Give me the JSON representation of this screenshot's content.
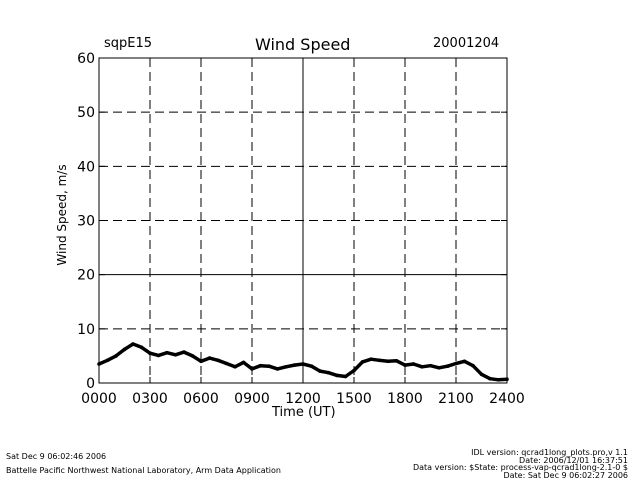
{
  "header": {
    "site": "sqpE15",
    "title": "Wind Speed",
    "date": "20001204"
  },
  "footer": {
    "left_line1": "Sat Dec  9 06:02:46 2006",
    "left_line2": "Battelle Pacific Northwest National Laboratory, Arm Data Application",
    "right_line1": "IDL version: qcrad1long_plots.pro,v 1.1",
    "right_line2": "Date: 2006/12/01 16:37:51",
    "right_line3": "Data version: $State: process-vap-qcrad1long-2.1-0 $",
    "right_line4": "Date: Sat Dec  9 06:02:27 2006"
  },
  "chart_data": {
    "type": "line",
    "title": "Wind Speed",
    "xlabel": "Time (UT)",
    "ylabel": "Wind Speed, m/s",
    "xlim": [
      0,
      2400
    ],
    "ylim": [
      0,
      60
    ],
    "x_ticks": [
      "0000",
      "0300",
      "0600",
      "0900",
      "1200",
      "1500",
      "1800",
      "2100",
      "2400"
    ],
    "y_ticks": [
      "0",
      "10",
      "20",
      "30",
      "40",
      "50",
      "60"
    ],
    "grid": true,
    "series": [
      {
        "color": "#000000",
        "x": [
          0,
          50,
          100,
          150,
          200,
          250,
          300,
          350,
          400,
          450,
          500,
          550,
          600,
          650,
          700,
          750,
          800,
          850,
          900,
          950,
          1000,
          1050,
          1100,
          1150,
          1200,
          1250,
          1300,
          1350,
          1400,
          1450,
          1500,
          1550,
          1600,
          1650,
          1700,
          1750,
          1800,
          1850,
          1900,
          1950,
          2000,
          2050,
          2100,
          2150,
          2200,
          2250,
          2300,
          2350,
          2400
        ],
        "y": [
          3.5,
          4.2,
          5.0,
          6.2,
          7.2,
          6.6,
          5.5,
          5.1,
          5.6,
          5.2,
          5.7,
          5.0,
          4.0,
          4.6,
          4.2,
          3.6,
          3.0,
          3.8,
          2.6,
          3.2,
          3.1,
          2.6,
          3.0,
          3.3,
          3.5,
          3.1,
          2.2,
          1.9,
          1.4,
          1.2,
          2.3,
          3.9,
          4.4,
          4.2,
          4.0,
          4.1,
          3.3,
          3.5,
          3.0,
          3.2,
          2.8,
          3.1,
          3.6,
          4.0,
          3.2,
          1.6,
          0.8,
          0.6,
          0.7
        ]
      }
    ]
  }
}
